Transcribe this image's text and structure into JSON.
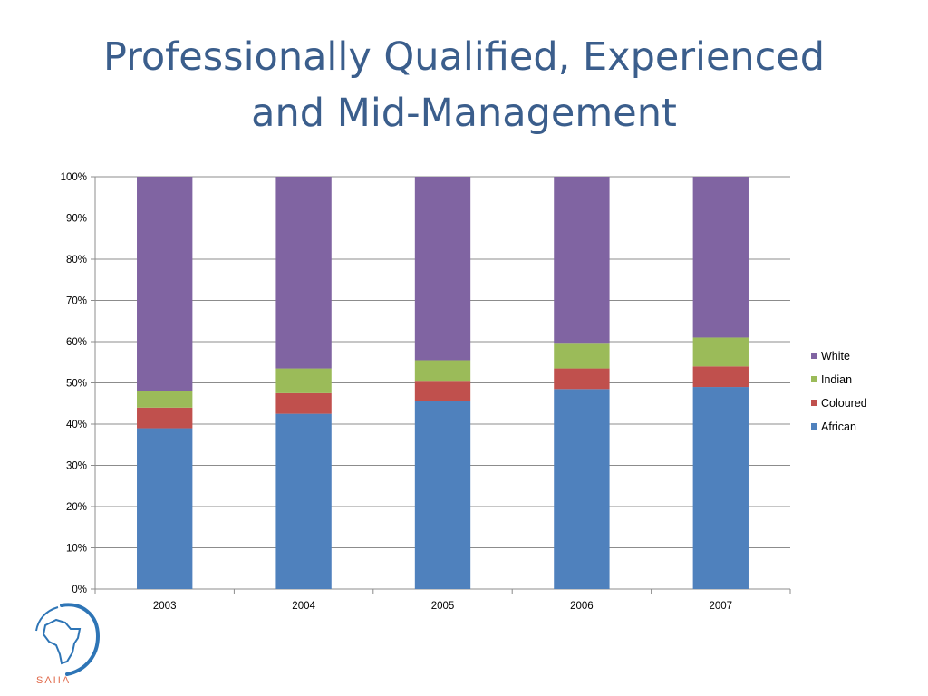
{
  "title": {
    "line1": "Professionally Qualified, Experienced",
    "line2": "and Mid-Management"
  },
  "logo": {
    "text": "SAIIA",
    "primary_color": "#2e75b6",
    "accent_color": "#e0694a"
  },
  "chart_data": {
    "type": "bar",
    "stacked": true,
    "percent": true,
    "categories": [
      "2003",
      "2004",
      "2005",
      "2006",
      "2007"
    ],
    "series": [
      {
        "name": "African",
        "color": "#4f81bd",
        "values": [
          39,
          42.5,
          45.5,
          48.5,
          49
        ]
      },
      {
        "name": "Coloured",
        "color": "#c0504d",
        "values": [
          5,
          5,
          5,
          5,
          5
        ]
      },
      {
        "name": "Indian",
        "color": "#9bbb59",
        "values": [
          4,
          6,
          5,
          6,
          7
        ]
      },
      {
        "name": "White",
        "color": "#8064a2",
        "values": [
          52,
          46.5,
          44.5,
          40.5,
          39
        ]
      }
    ],
    "yticks": [
      "0%",
      "10%",
      "20%",
      "30%",
      "40%",
      "50%",
      "60%",
      "70%",
      "80%",
      "90%",
      "100%"
    ],
    "ylim": [
      0,
      100
    ],
    "grid": true,
    "legend": "right",
    "legend_order": [
      "White",
      "Indian",
      "Coloured",
      "African"
    ]
  }
}
